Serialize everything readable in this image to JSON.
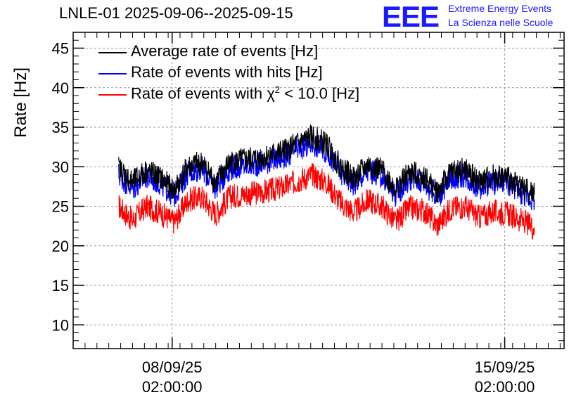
{
  "chart_data": {
    "type": "line",
    "title": "LNLE-01 2025-09-06--2025-09-15",
    "ylabel": "Rate [Hz]",
    "xlabel": "",
    "ylim": [
      7,
      47
    ],
    "xlim": [
      "2025-09-06 00:00",
      "2025-09-16 08:00"
    ],
    "yticks": [
      10,
      15,
      20,
      25,
      30,
      35,
      40,
      45
    ],
    "xticks": [
      {
        "x": "2025-09-08 02:00",
        "label_line1": "08/09/25",
        "label_line2": "02:00:00"
      },
      {
        "x": "2025-09-15 02:00",
        "label_line1": "15/09/25",
        "label_line2": "02:00:00"
      }
    ],
    "grid": true,
    "legend_position": "top-left",
    "series": [
      {
        "name": "Average rate of events [Hz]",
        "color": "#000000",
        "x": [
          "2025-09-06 23:00",
          "2025-09-07 06:00",
          "2025-09-07 13:00",
          "2025-09-07 20:00",
          "2025-09-08 03:00",
          "2025-09-08 10:00",
          "2025-09-08 17:00",
          "2025-09-09 00:00",
          "2025-09-09 07:00",
          "2025-09-09 14:00",
          "2025-09-09 21:00",
          "2025-09-10 04:00",
          "2025-09-10 11:00",
          "2025-09-10 18:00",
          "2025-09-11 01:00",
          "2025-09-11 08:00",
          "2025-09-11 15:00",
          "2025-09-11 22:00",
          "2025-09-12 05:00",
          "2025-09-12 12:00",
          "2025-09-12 19:00",
          "2025-09-13 02:00",
          "2025-09-13 09:00",
          "2025-09-13 16:00",
          "2025-09-13 23:00",
          "2025-09-14 06:00",
          "2025-09-14 13:00",
          "2025-09-14 20:00",
          "2025-09-15 03:00",
          "2025-09-15 10:00",
          "2025-09-15 17:00"
        ],
        "values": [
          29.8,
          28.0,
          29.5,
          28.6,
          27.0,
          30.0,
          30.5,
          28.0,
          30.5,
          30.8,
          31.0,
          31.5,
          32.0,
          33.0,
          33.8,
          32.8,
          30.0,
          28.5,
          30.2,
          29.5,
          27.2,
          29.2,
          28.8,
          26.8,
          29.3,
          29.6,
          28.0,
          28.8,
          28.6,
          27.5,
          26.5
        ]
      },
      {
        "name": "Rate of events with hits [Hz]",
        "color": "#0000ff",
        "x": [
          "2025-09-06 23:00",
          "2025-09-07 06:00",
          "2025-09-07 13:00",
          "2025-09-07 20:00",
          "2025-09-08 03:00",
          "2025-09-08 10:00",
          "2025-09-08 17:00",
          "2025-09-09 00:00",
          "2025-09-09 07:00",
          "2025-09-09 14:00",
          "2025-09-09 21:00",
          "2025-09-10 04:00",
          "2025-09-10 11:00",
          "2025-09-10 18:00",
          "2025-09-11 01:00",
          "2025-09-11 08:00",
          "2025-09-11 15:00",
          "2025-09-11 22:00",
          "2025-09-12 05:00",
          "2025-09-12 12:00",
          "2025-09-12 19:00",
          "2025-09-13 02:00",
          "2025-09-13 09:00",
          "2025-09-13 16:00",
          "2025-09-13 23:00",
          "2025-09-14 06:00",
          "2025-09-14 13:00",
          "2025-09-14 20:00",
          "2025-09-15 03:00",
          "2025-09-15 10:00",
          "2025-09-15 17:00"
        ],
        "values": [
          29.0,
          27.2,
          28.8,
          27.9,
          26.3,
          29.3,
          29.8,
          27.3,
          29.8,
          30.1,
          30.3,
          30.8,
          31.3,
          32.2,
          33.0,
          32.0,
          29.3,
          27.8,
          29.5,
          28.8,
          26.5,
          28.5,
          28.1,
          26.1,
          28.6,
          28.9,
          27.3,
          28.1,
          27.9,
          26.8,
          25.8
        ]
      },
      {
        "name": "Rate of events with χ² < 10.0 [Hz]",
        "color": "#ff0000",
        "x": [
          "2025-09-06 23:00",
          "2025-09-07 06:00",
          "2025-09-07 13:00",
          "2025-09-07 20:00",
          "2025-09-08 03:00",
          "2025-09-08 10:00",
          "2025-09-08 17:00",
          "2025-09-09 00:00",
          "2025-09-09 07:00",
          "2025-09-09 14:00",
          "2025-09-09 21:00",
          "2025-09-10 04:00",
          "2025-09-10 11:00",
          "2025-09-10 18:00",
          "2025-09-11 01:00",
          "2025-09-11 08:00",
          "2025-09-11 15:00",
          "2025-09-11 22:00",
          "2025-09-12 05:00",
          "2025-09-12 12:00",
          "2025-09-12 19:00",
          "2025-09-13 02:00",
          "2025-09-13 09:00",
          "2025-09-13 16:00",
          "2025-09-13 23:00",
          "2025-09-14 06:00",
          "2025-09-14 13:00",
          "2025-09-14 20:00",
          "2025-09-15 03:00",
          "2025-09-15 10:00",
          "2025-09-15 17:00"
        ],
        "values": [
          25.0,
          23.2,
          25.0,
          24.2,
          23.0,
          25.8,
          26.2,
          24.0,
          26.2,
          26.5,
          26.7,
          27.0,
          27.5,
          28.3,
          29.0,
          28.0,
          25.5,
          24.2,
          25.8,
          25.0,
          23.0,
          24.8,
          24.5,
          22.6,
          24.8,
          25.0,
          23.6,
          24.3,
          24.1,
          23.3,
          22.3
        ]
      }
    ]
  },
  "header": {
    "title": "LNLE-01 2025-09-06--2025-09-15",
    "logo_text": "EEE",
    "logo_line1": "Extreme Energy Events",
    "logo_line2": "La Scienza nelle Scuole"
  },
  "legend": {
    "item1": "Average rate of events [Hz]",
    "item2": "Rate of events with hits [Hz]",
    "item3_pre": "Rate of events with ",
    "item3_chi": "χ",
    "item3_sup": "2",
    "item3_post": " < 10.0 [Hz]"
  },
  "colors": {
    "average": "#000000",
    "hits": "#0000ff",
    "chi2": "#ff0000",
    "logo": "#1a1aff"
  }
}
